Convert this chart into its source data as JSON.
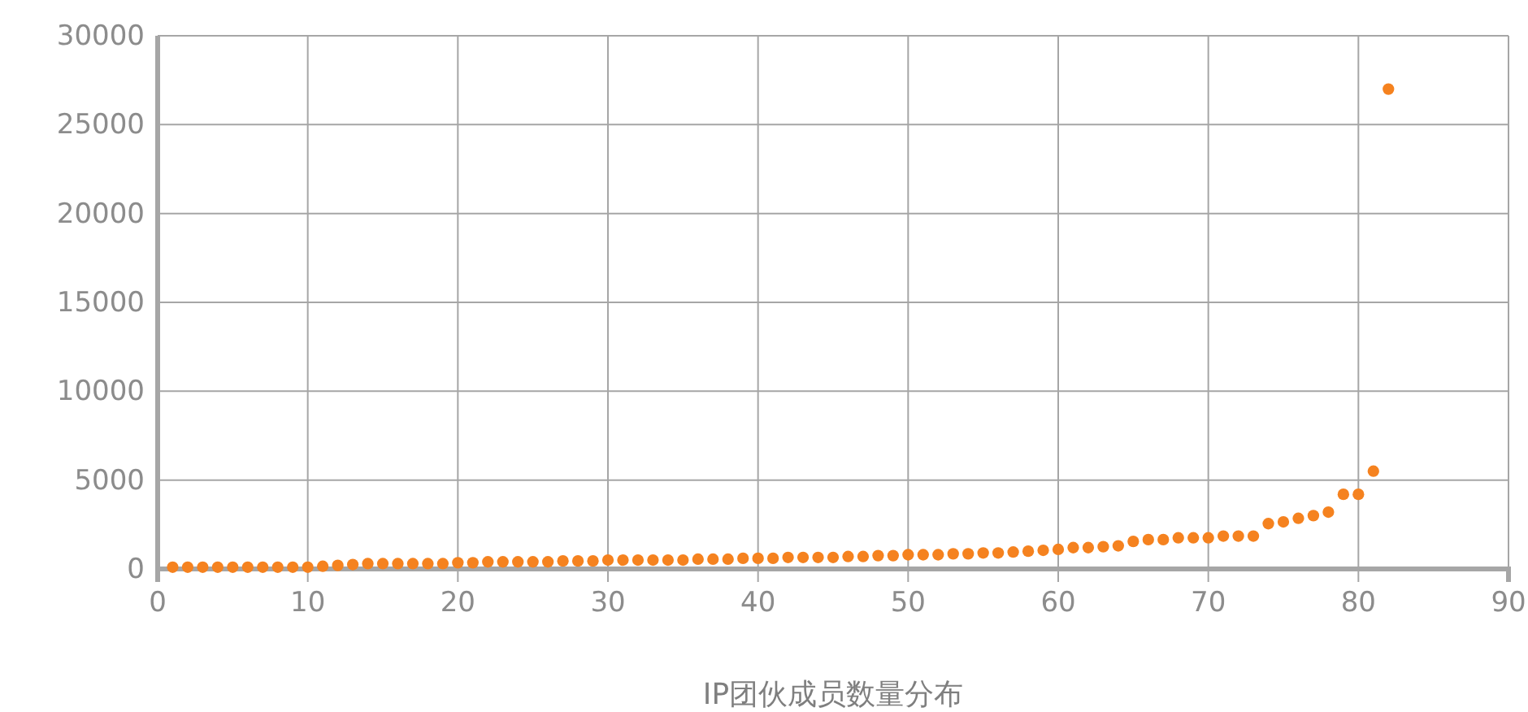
{
  "chart_data": {
    "type": "scatter",
    "xlabel": "IP团伙成员数量分布",
    "x": [
      1,
      2,
      3,
      4,
      5,
      6,
      7,
      8,
      9,
      10,
      11,
      12,
      13,
      14,
      15,
      16,
      17,
      18,
      19,
      20,
      21,
      22,
      23,
      24,
      25,
      26,
      27,
      28,
      29,
      30,
      31,
      32,
      33,
      34,
      35,
      36,
      37,
      38,
      39,
      40,
      41,
      42,
      43,
      44,
      45,
      46,
      47,
      48,
      49,
      50,
      51,
      52,
      53,
      54,
      55,
      56,
      57,
      58,
      59,
      60,
      61,
      62,
      63,
      64,
      65,
      66,
      67,
      68,
      69,
      70,
      71,
      72,
      73,
      74,
      75,
      76,
      77,
      78,
      79,
      80,
      81,
      82
    ],
    "series": [
      {
        "color": "#f5821f",
        "values": [
          100,
          100,
          100,
          100,
          100,
          100,
          100,
          100,
          100,
          100,
          150,
          200,
          250,
          300,
          300,
          300,
          300,
          300,
          300,
          350,
          350,
          400,
          400,
          400,
          400,
          400,
          450,
          450,
          450,
          500,
          500,
          500,
          500,
          500,
          500,
          550,
          550,
          550,
          600,
          600,
          600,
          650,
          650,
          650,
          650,
          700,
          700,
          750,
          750,
          800,
          800,
          800,
          850,
          850,
          900,
          900,
          950,
          1000,
          1050,
          1100,
          1200,
          1200,
          1250,
          1300,
          1550,
          1650,
          1650,
          1750,
          1750,
          1750,
          1850,
          1850,
          1850,
          2550,
          2650,
          2850,
          3000,
          3200,
          4200,
          4200,
          5500,
          27000
        ]
      }
    ],
    "xlim": [
      0,
      90
    ],
    "xticks": [
      0,
      10,
      20,
      30,
      40,
      50,
      60,
      70,
      80,
      90
    ],
    "ylim": [
      0,
      30000
    ],
    "yticks": [
      0,
      5000,
      10000,
      15000,
      20000,
      25000,
      30000
    ],
    "grid": true,
    "marker": "circle"
  }
}
